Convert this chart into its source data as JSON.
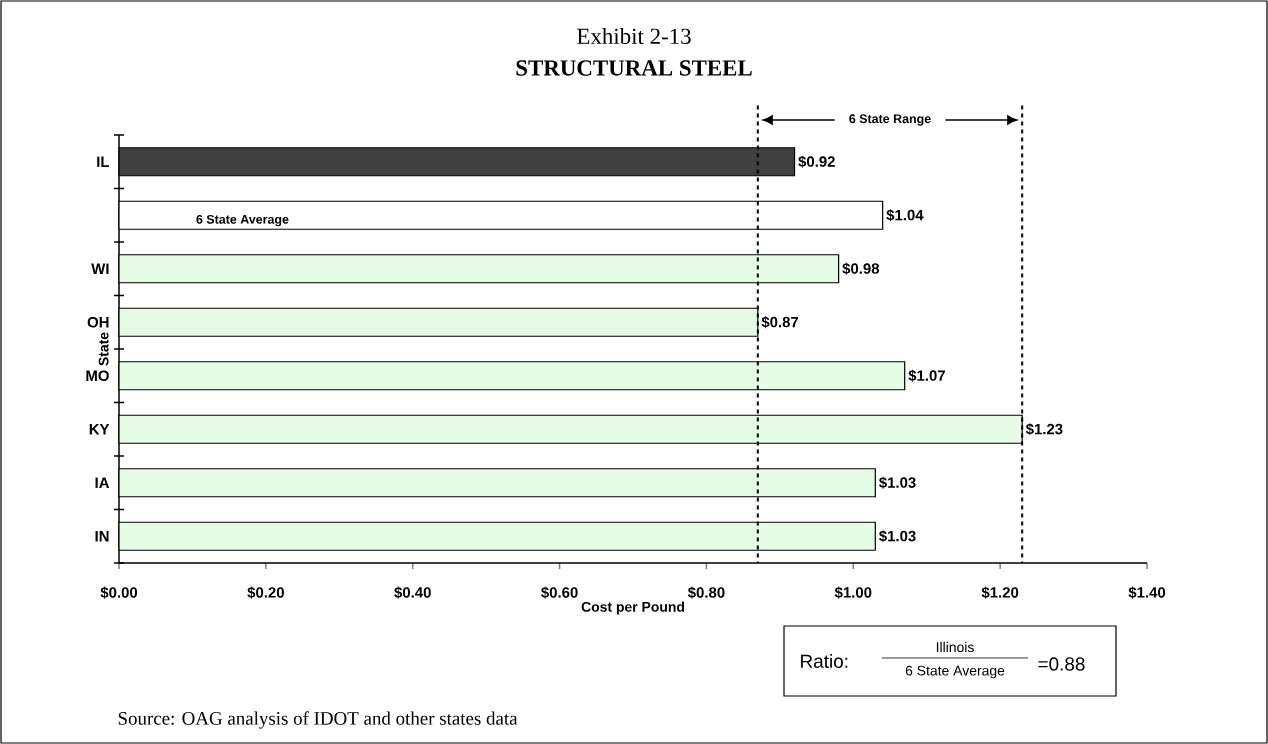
{
  "chart_data": {
    "type": "bar",
    "orientation": "horizontal",
    "title": "Exhibit 2-13",
    "subtitle": "STRUCTURAL STEEL",
    "xlabel": "Cost per Pound",
    "ylabel": "State",
    "categories": [
      "IL",
      null,
      "WI",
      "OH",
      "MO",
      "KY",
      "IA",
      "IN"
    ],
    "values": [
      0.92,
      1.04,
      0.98,
      0.87,
      1.07,
      1.23,
      1.03,
      1.03
    ],
    "colors": [
      "#404040",
      "#ffffff",
      "#e6fbe6",
      "#e6fbe6",
      "#e6fbe6",
      "#e6fbe6",
      "#e6fbe6",
      "#e6fbe6"
    ],
    "value_labels": [
      "$0.92",
      "$1.04",
      "$0.98",
      "$0.87",
      "$1.07",
      "$1.23",
      "$1.03",
      "$1.03"
    ],
    "xlim": [
      0,
      1.4
    ],
    "xticks": [
      {
        "value": 0,
        "label": "$0.00"
      },
      {
        "value": 0.2,
        "label": "$0.20"
      },
      {
        "value": 0.4,
        "label": "$0.40"
      },
      {
        "value": 0.6,
        "label": "$0.60"
      },
      {
        "value": 0.8,
        "label": "$0.80"
      },
      {
        "value": 1.0,
        "label": "$1.00"
      },
      {
        "value": 1.2,
        "label": "$1.20"
      },
      {
        "value": 1.4,
        "label": "$1.40"
      }
    ],
    "ref_lines": [
      {
        "axis": "x",
        "value": 0.87,
        "line_style": "dotted"
      },
      {
        "axis": "x",
        "value": 1.23,
        "line_style": "dotted"
      }
    ],
    "annotations": [
      "6 State Average",
      "6 State Range",
      "Ratio:",
      "Illinois",
      "6 State Average",
      "=0.88",
      "Source:  OAG analysis of IDOT and other states data"
    ]
  }
}
